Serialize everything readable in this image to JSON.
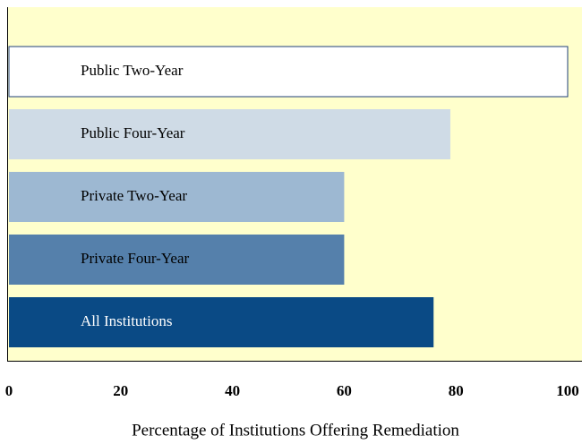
{
  "chart_data": {
    "type": "bar",
    "orientation": "horizontal",
    "xlabel": "Percentage of Institutions Offering Remediation",
    "categories": [
      "Public Two-Year",
      "Public Four-Year",
      "Private Two-Year",
      "Private Four-Year",
      "All Institutions"
    ],
    "values": [
      100,
      79,
      60,
      60,
      76
    ],
    "colors": [
      "#ffffff",
      "#cfdbe6",
      "#9db8d2",
      "#5580ab",
      "#0a4a85"
    ],
    "xlim": [
      0,
      100
    ],
    "xticks": [
      0,
      20,
      40,
      60,
      80,
      100
    ],
    "grid": false
  }
}
